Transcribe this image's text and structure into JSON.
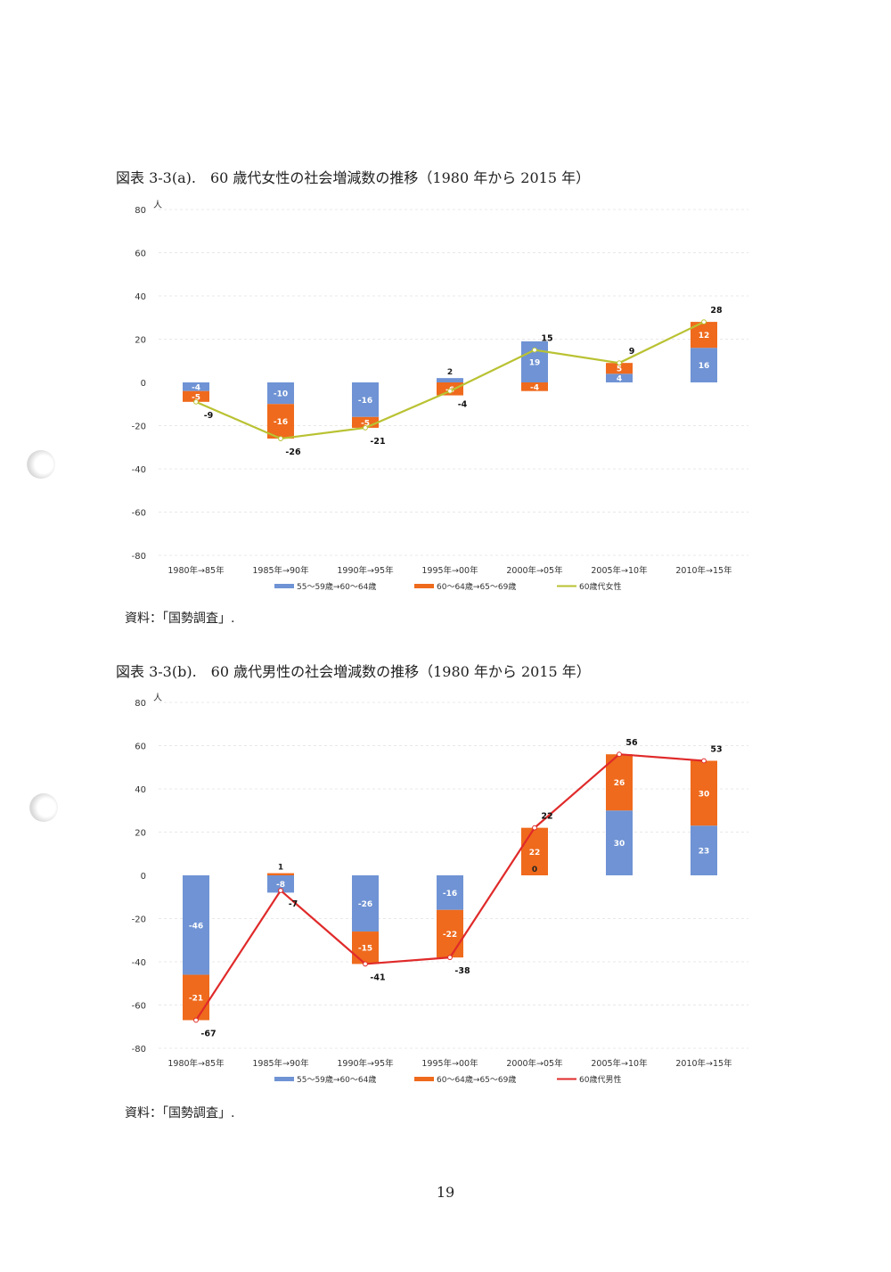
{
  "figure_a": {
    "title": "図表 3-3(a).　60 歳代女性の社会増減数の推移（1980 年から 2015 年）",
    "source": "資料：「国勢調査」."
  },
  "figure_b": {
    "title": "図表 3-3(b).　60 歳代男性の社会増減数の推移（1980 年から 2015 年）",
    "source": "資料：「国勢調査」."
  },
  "page_number": "19",
  "colors": {
    "blue": "#6f93d4",
    "orange": "#ef6a1c",
    "line_a": "#b9c232",
    "line_b": "#e02a2a",
    "grid": "#e8e8e8"
  },
  "chart_data": [
    {
      "type": "bar",
      "stacked": true,
      "title": "図表 3-3(a).　60 歳代女性の社会増減数の推移（1980 年から 2015 年）",
      "ylabel": "人",
      "ylim": [
        -80,
        80
      ],
      "yticks": [
        80,
        60,
        40,
        20,
        0,
        -20,
        -40,
        -60,
        -80
      ],
      "categories": [
        "1980年→85年",
        "1985年→90年",
        "1990年→95年",
        "1995年→00年",
        "2000年→05年",
        "2005年→10年",
        "2010年→15年"
      ],
      "series": [
        {
          "name": "55～59歳→60～64歳",
          "kind": "bar",
          "color": "#6f93d4",
          "values": [
            -4,
            -10,
            -16,
            2,
            19,
            4,
            16
          ]
        },
        {
          "name": "60～64歳→65～69歳",
          "kind": "bar",
          "color": "#ef6a1c",
          "values": [
            -5,
            -16,
            -5,
            -6,
            -4,
            5,
            12
          ]
        },
        {
          "name": "60歳代女性",
          "kind": "line",
          "color": "#b9c232",
          "values": [
            -9,
            -26,
            -21,
            -4,
            15,
            9,
            28
          ]
        }
      ]
    },
    {
      "type": "bar",
      "stacked": true,
      "title": "図表 3-3(b).　60 歳代男性の社会増減数の推移（1980 年から 2015 年）",
      "ylabel": "人",
      "ylim": [
        -80,
        80
      ],
      "yticks": [
        80,
        60,
        40,
        20,
        0,
        -20,
        -40,
        -60,
        -80
      ],
      "categories": [
        "1980年→85年",
        "1985年→90年",
        "1990年→95年",
        "1995年→00年",
        "2000年→05年",
        "2005年→10年",
        "2010年→15年"
      ],
      "series": [
        {
          "name": "55～59歳→60～64歳",
          "kind": "bar",
          "color": "#6f93d4",
          "values": [
            -46,
            -8,
            -26,
            -16,
            0,
            30,
            23
          ]
        },
        {
          "name": "60～64歳→65～69歳",
          "kind": "bar",
          "color": "#ef6a1c",
          "values": [
            -21,
            1,
            -15,
            -22,
            22,
            26,
            30
          ]
        },
        {
          "name": "60歳代男性",
          "kind": "line",
          "color": "#e02a2a",
          "values": [
            -67,
            -7,
            -41,
            -38,
            22,
            56,
            53
          ]
        }
      ]
    }
  ]
}
